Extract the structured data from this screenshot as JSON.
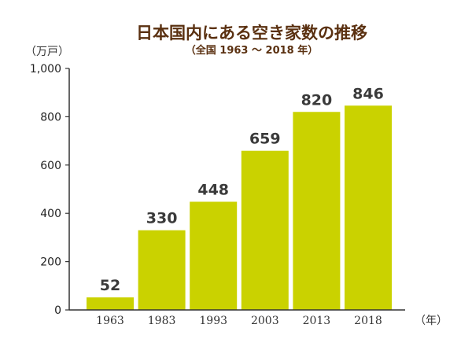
{
  "chart_data": {
    "type": "bar",
    "title": "日本国内にある空き家数の推移",
    "subtitle": "（全国 1963 ～ 2018 年）",
    "ylabel": "（万戸）",
    "xlabel": "（年）",
    "categories": [
      "1963",
      "1983",
      "1993",
      "2003",
      "2013",
      "2018"
    ],
    "values": [
      52,
      330,
      448,
      659,
      820,
      846
    ],
    "data_labels": [
      "52",
      "330",
      "448",
      "659",
      "820",
      "846"
    ],
    "ylim": [
      0,
      1000
    ],
    "yticks": [
      0,
      200,
      400,
      600,
      800,
      1000
    ],
    "ytick_labels": [
      "0",
      "200",
      "400",
      "600",
      "800",
      "1,000"
    ],
    "grid": false,
    "legend": "none",
    "colors": {
      "bar": "#cad200",
      "title": "#5a3010",
      "axis": "#333333"
    }
  }
}
